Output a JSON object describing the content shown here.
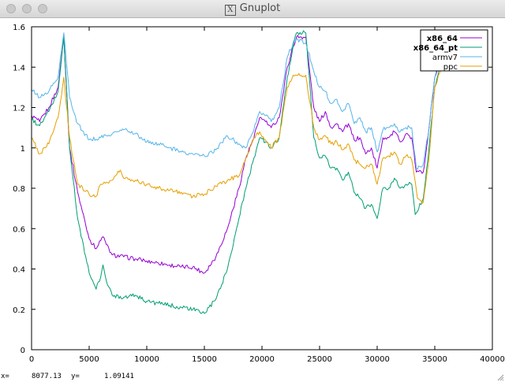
{
  "window": {
    "title": "Gnuplot",
    "logo_glyph": "X"
  },
  "status": {
    "x_label": "x=",
    "x_value": "8077.13",
    "y_label": "y=",
    "y_value": "1.09141"
  },
  "chart_data": {
    "type": "line",
    "xlim": [
      0,
      40000
    ],
    "ylim": [
      0,
      1.6
    ],
    "x_ticks": [
      0,
      5000,
      10000,
      15000,
      20000,
      25000,
      30000,
      35000,
      40000
    ],
    "x_tick_labels": [
      "0",
      "5000",
      "10000",
      "15000",
      "20000",
      "25000",
      "30000",
      "35000",
      "40000"
    ],
    "y_ticks": [
      0,
      0.2,
      0.4,
      0.6,
      0.8,
      1,
      1.2,
      1.4,
      1.6
    ],
    "y_tick_labels": [
      "0",
      "0.2",
      "0.4",
      "0.6",
      "0.8",
      "1",
      "1.2",
      "1.4",
      "1.6"
    ],
    "legend_position": "top-right",
    "series": [
      {
        "name": "x86_64",
        "color": "#9400d3",
        "points": [
          [
            0,
            1.16
          ],
          [
            700,
            1.13
          ],
          [
            1500,
            1.2
          ],
          [
            2300,
            1.3
          ],
          [
            2800,
            1.55
          ],
          [
            3300,
            1.0
          ],
          [
            4000,
            0.78
          ],
          [
            5000,
            0.55
          ],
          [
            5600,
            0.5
          ],
          [
            6200,
            0.56
          ],
          [
            6500,
            0.52
          ],
          [
            7000,
            0.47
          ],
          [
            8000,
            0.46
          ],
          [
            9000,
            0.45
          ],
          [
            10000,
            0.44
          ],
          [
            11000,
            0.43
          ],
          [
            12000,
            0.42
          ],
          [
            13000,
            0.41
          ],
          [
            14000,
            0.41
          ],
          [
            15000,
            0.38
          ],
          [
            16000,
            0.46
          ],
          [
            17000,
            0.6
          ],
          [
            18000,
            0.8
          ],
          [
            18600,
            0.95
          ],
          [
            19300,
            1.05
          ],
          [
            19800,
            1.15
          ],
          [
            20300,
            1.13
          ],
          [
            20800,
            1.1
          ],
          [
            21500,
            1.15
          ],
          [
            22200,
            1.4
          ],
          [
            22700,
            1.5
          ],
          [
            23000,
            1.55
          ],
          [
            23800,
            1.55
          ],
          [
            24500,
            1.2
          ],
          [
            25000,
            1.13
          ],
          [
            25500,
            1.18
          ],
          [
            26000,
            1.1
          ],
          [
            26500,
            1.12
          ],
          [
            27000,
            1.08
          ],
          [
            27500,
            1.12
          ],
          [
            28000,
            1.04
          ],
          [
            28500,
            1.05
          ],
          [
            29000,
            0.97
          ],
          [
            29500,
            1.0
          ],
          [
            30000,
            0.9
          ],
          [
            30500,
            1.05
          ],
          [
            31000,
            1.05
          ],
          [
            31500,
            1.08
          ],
          [
            32000,
            1.03
          ],
          [
            32500,
            1.07
          ],
          [
            33000,
            1.05
          ],
          [
            33400,
            0.88
          ],
          [
            34000,
            0.88
          ],
          [
            34500,
            1.1
          ],
          [
            35000,
            1.35
          ],
          [
            35500,
            1.44
          ]
        ]
      },
      {
        "name": "x86_64_pt",
        "color": "#009e73",
        "points": [
          [
            0,
            1.14
          ],
          [
            700,
            1.11
          ],
          [
            1500,
            1.18
          ],
          [
            2300,
            1.28
          ],
          [
            2800,
            1.55
          ],
          [
            3300,
            1.0
          ],
          [
            4000,
            0.65
          ],
          [
            5000,
            0.38
          ],
          [
            5600,
            0.3
          ],
          [
            6000,
            0.36
          ],
          [
            6200,
            0.42
          ],
          [
            6600,
            0.32
          ],
          [
            7000,
            0.27
          ],
          [
            8000,
            0.26
          ],
          [
            9000,
            0.27
          ],
          [
            10000,
            0.24
          ],
          [
            11000,
            0.23
          ],
          [
            12000,
            0.22
          ],
          [
            13000,
            0.21
          ],
          [
            14000,
            0.2
          ],
          [
            15000,
            0.18
          ],
          [
            16000,
            0.25
          ],
          [
            17000,
            0.4
          ],
          [
            18000,
            0.65
          ],
          [
            18600,
            0.8
          ],
          [
            19300,
            0.95
          ],
          [
            19800,
            1.05
          ],
          [
            20300,
            1.03
          ],
          [
            20800,
            1.0
          ],
          [
            21500,
            1.05
          ],
          [
            22200,
            1.35
          ],
          [
            22700,
            1.5
          ],
          [
            23000,
            1.57
          ],
          [
            23800,
            1.57
          ],
          [
            24500,
            1.05
          ],
          [
            25000,
            0.95
          ],
          [
            25500,
            0.96
          ],
          [
            26000,
            0.9
          ],
          [
            26500,
            0.9
          ],
          [
            27000,
            0.84
          ],
          [
            27500,
            0.88
          ],
          [
            28000,
            0.78
          ],
          [
            28500,
            0.75
          ],
          [
            29000,
            0.7
          ],
          [
            29500,
            0.72
          ],
          [
            30000,
            0.65
          ],
          [
            30500,
            0.8
          ],
          [
            31000,
            0.8
          ],
          [
            31500,
            0.85
          ],
          [
            32000,
            0.8
          ],
          [
            32500,
            0.82
          ],
          [
            33000,
            0.82
          ],
          [
            33300,
            0.67
          ],
          [
            34000,
            0.75
          ],
          [
            34500,
            1.0
          ],
          [
            35000,
            1.3
          ],
          [
            35500,
            1.42
          ]
        ]
      },
      {
        "name": "armv7",
        "color": "#56b4e9",
        "points": [
          [
            0,
            1.29
          ],
          [
            700,
            1.25
          ],
          [
            1500,
            1.28
          ],
          [
            2300,
            1.35
          ],
          [
            2800,
            1.57
          ],
          [
            3300,
            1.25
          ],
          [
            4000,
            1.12
          ],
          [
            5000,
            1.04
          ],
          [
            6000,
            1.05
          ],
          [
            7000,
            1.07
          ],
          [
            8000,
            1.09
          ],
          [
            9000,
            1.07
          ],
          [
            10000,
            1.03
          ],
          [
            11000,
            1.02
          ],
          [
            12000,
            1.0
          ],
          [
            13000,
            0.98
          ],
          [
            14000,
            0.97
          ],
          [
            15000,
            0.96
          ],
          [
            16000,
            0.99
          ],
          [
            17000,
            1.06
          ],
          [
            18000,
            1.02
          ],
          [
            18600,
            1.0
          ],
          [
            19300,
            1.09
          ],
          [
            19800,
            1.18
          ],
          [
            20300,
            1.16
          ],
          [
            20800,
            1.13
          ],
          [
            21500,
            1.2
          ],
          [
            22200,
            1.45
          ],
          [
            22700,
            1.52
          ],
          [
            23000,
            1.54
          ],
          [
            23800,
            1.52
          ],
          [
            24500,
            1.38
          ],
          [
            25000,
            1.3
          ],
          [
            25500,
            1.28
          ],
          [
            26000,
            1.22
          ],
          [
            26500,
            1.24
          ],
          [
            27000,
            1.18
          ],
          [
            27500,
            1.22
          ],
          [
            28000,
            1.12
          ],
          [
            28500,
            1.15
          ],
          [
            29000,
            1.08
          ],
          [
            29500,
            1.1
          ],
          [
            30000,
            0.98
          ],
          [
            30500,
            1.09
          ],
          [
            31000,
            1.1
          ],
          [
            31500,
            1.12
          ],
          [
            32000,
            1.08
          ],
          [
            32500,
            1.1
          ],
          [
            33000,
            1.1
          ],
          [
            33400,
            0.9
          ],
          [
            34000,
            0.92
          ],
          [
            34500,
            1.1
          ],
          [
            35000,
            1.35
          ],
          [
            35500,
            1.48
          ]
        ]
      },
      {
        "name": "ppc",
        "color": "#e69f00",
        "points": [
          [
            0,
            1.05
          ],
          [
            700,
            0.97
          ],
          [
            1500,
            1.02
          ],
          [
            2300,
            1.15
          ],
          [
            2800,
            1.35
          ],
          [
            3300,
            1.05
          ],
          [
            4000,
            0.82
          ],
          [
            5000,
            0.77
          ],
          [
            5600,
            0.76
          ],
          [
            6000,
            0.82
          ],
          [
            6500,
            0.83
          ],
          [
            7000,
            0.84
          ],
          [
            7700,
            0.89
          ],
          [
            8000,
            0.85
          ],
          [
            9000,
            0.84
          ],
          [
            10000,
            0.82
          ],
          [
            11000,
            0.8
          ],
          [
            12000,
            0.79
          ],
          [
            13000,
            0.78
          ],
          [
            14000,
            0.76
          ],
          [
            15000,
            0.77
          ],
          [
            16000,
            0.81
          ],
          [
            17000,
            0.84
          ],
          [
            18000,
            0.86
          ],
          [
            18600,
            0.95
          ],
          [
            19300,
            1.05
          ],
          [
            19800,
            1.08
          ],
          [
            20300,
            1.04
          ],
          [
            20800,
            1.0
          ],
          [
            21500,
            1.05
          ],
          [
            22200,
            1.3
          ],
          [
            22700,
            1.36
          ],
          [
            23000,
            1.36
          ],
          [
            23800,
            1.36
          ],
          [
            24500,
            1.1
          ],
          [
            25000,
            1.04
          ],
          [
            25500,
            1.06
          ],
          [
            26000,
            1.02
          ],
          [
            26500,
            1.03
          ],
          [
            27000,
            0.99
          ],
          [
            27500,
            1.02
          ],
          [
            28000,
            0.94
          ],
          [
            28500,
            0.92
          ],
          [
            29000,
            0.9
          ],
          [
            29500,
            0.92
          ],
          [
            30000,
            0.82
          ],
          [
            30500,
            0.95
          ],
          [
            31000,
            0.96
          ],
          [
            31500,
            0.98
          ],
          [
            32000,
            0.92
          ],
          [
            32500,
            0.96
          ],
          [
            33000,
            0.94
          ],
          [
            33500,
            0.75
          ],
          [
            34000,
            0.73
          ],
          [
            34500,
            0.95
          ],
          [
            35000,
            1.3
          ],
          [
            35500,
            1.38
          ]
        ]
      }
    ]
  }
}
